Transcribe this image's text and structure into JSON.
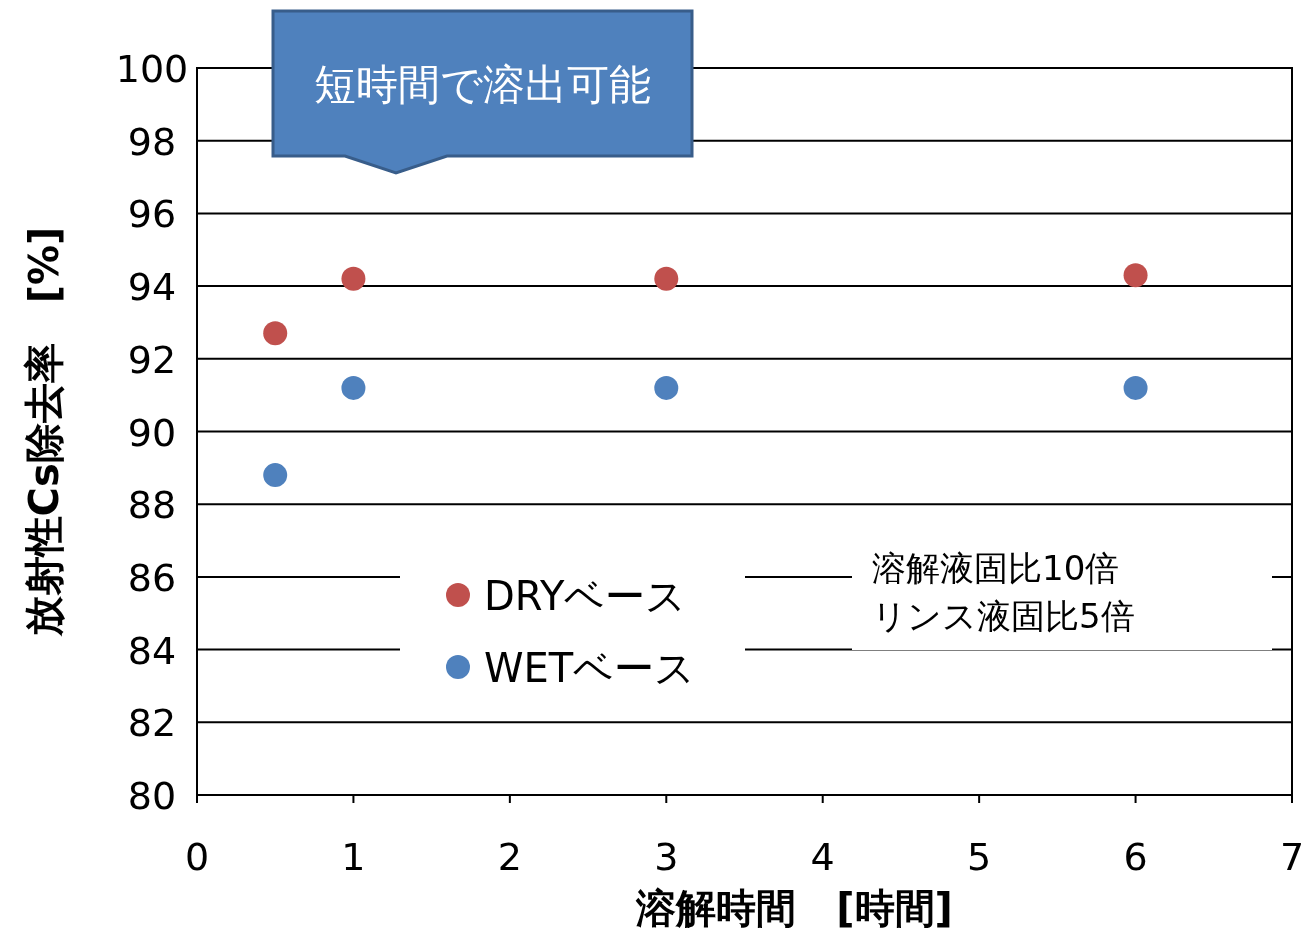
{
  "chart_data": {
    "type": "scatter",
    "xlabel": "溶解時間　[時間]",
    "ylabel": "放射性Cs除去率　[%]",
    "series": [
      {
        "name": "DRYベース",
        "color": "#c0504d",
        "x": [
          0.5,
          1,
          3,
          6
        ],
        "values": [
          92.7,
          94.2,
          94.2,
          94.3
        ]
      },
      {
        "name": "WETベース",
        "color": "#4f81bd",
        "x": [
          0.5,
          1,
          3,
          6
        ],
        "values": [
          88.8,
          91.2,
          91.2,
          91.2
        ]
      }
    ],
    "xlim": [
      0,
      7
    ],
    "xticks": [
      0,
      1,
      2,
      3,
      4,
      5,
      6,
      7
    ],
    "ylim": [
      80,
      100
    ],
    "yticks": [
      80,
      82,
      84,
      86,
      88,
      90,
      92,
      94,
      96,
      98,
      100
    ],
    "grid": "y",
    "legend": "bottom left",
    "marker": "circle",
    "annotations": [
      "短時間で溶出可能",
      "溶解液固比10倍",
      "リンス液固比5倍"
    ]
  }
}
